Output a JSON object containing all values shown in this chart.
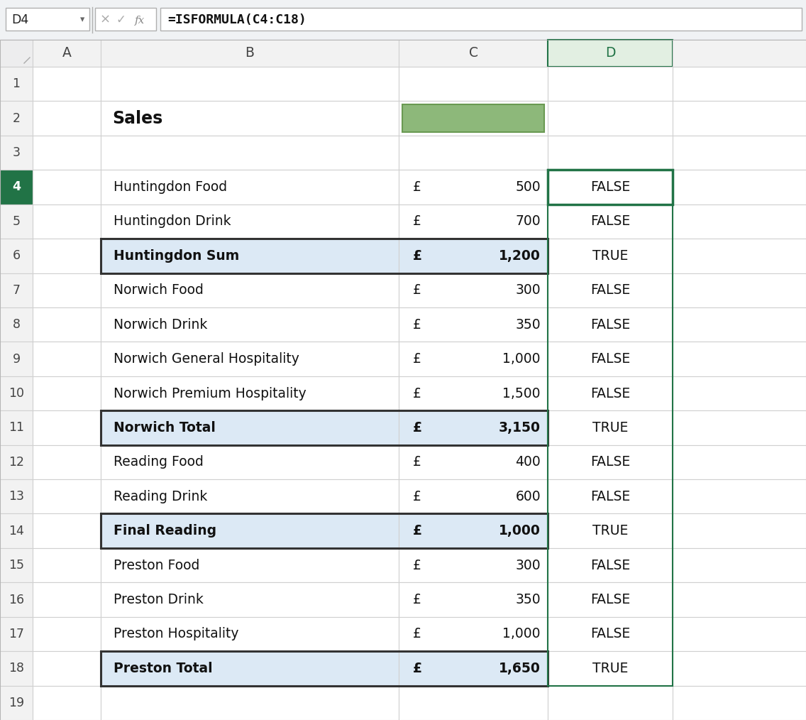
{
  "formula_bar_text": "=ISFORMULA(C4:C18)",
  "cell_ref": "D4",
  "rows": [
    {
      "row": 1,
      "b": "",
      "c_symbol": "",
      "c_val": "",
      "d": "",
      "bold": false,
      "sum_row": false
    },
    {
      "row": 2,
      "b": "Sales",
      "c_symbol": "",
      "c_val": "",
      "d": "",
      "bold": true,
      "sum_row": false,
      "green_cell": true
    },
    {
      "row": 3,
      "b": "",
      "c_symbol": "",
      "c_val": "",
      "d": "",
      "bold": false,
      "sum_row": false
    },
    {
      "row": 4,
      "b": "Huntingdon Food",
      "c_symbol": "£",
      "c_val": "500",
      "d": "FALSE",
      "bold": false,
      "sum_row": false
    },
    {
      "row": 5,
      "b": "Huntingdon Drink",
      "c_symbol": "£",
      "c_val": "700",
      "d": "FALSE",
      "bold": false,
      "sum_row": false
    },
    {
      "row": 6,
      "b": "Huntingdon Sum",
      "c_symbol": "£",
      "c_val": "1,200",
      "d": "TRUE",
      "bold": true,
      "sum_row": true
    },
    {
      "row": 7,
      "b": "Norwich Food",
      "c_symbol": "£",
      "c_val": "300",
      "d": "FALSE",
      "bold": false,
      "sum_row": false
    },
    {
      "row": 8,
      "b": "Norwich Drink",
      "c_symbol": "£",
      "c_val": "350",
      "d": "FALSE",
      "bold": false,
      "sum_row": false
    },
    {
      "row": 9,
      "b": "Norwich General Hospitality",
      "c_symbol": "£",
      "c_val": "1,000",
      "d": "FALSE",
      "bold": false,
      "sum_row": false
    },
    {
      "row": 10,
      "b": "Norwich Premium Hospitality",
      "c_symbol": "£",
      "c_val": "1,500",
      "d": "FALSE",
      "bold": false,
      "sum_row": false
    },
    {
      "row": 11,
      "b": "Norwich Total",
      "c_symbol": "£",
      "c_val": "3,150",
      "d": "TRUE",
      "bold": true,
      "sum_row": true
    },
    {
      "row": 12,
      "b": "Reading Food",
      "c_symbol": "£",
      "c_val": "400",
      "d": "FALSE",
      "bold": false,
      "sum_row": false
    },
    {
      "row": 13,
      "b": "Reading Drink",
      "c_symbol": "£",
      "c_val": "600",
      "d": "FALSE",
      "bold": false,
      "sum_row": false
    },
    {
      "row": 14,
      "b": "Final Reading",
      "c_symbol": "£",
      "c_val": "1,000",
      "d": "TRUE",
      "bold": true,
      "sum_row": true
    },
    {
      "row": 15,
      "b": "Preston Food",
      "c_symbol": "£",
      "c_val": "300",
      "d": "FALSE",
      "bold": false,
      "sum_row": false
    },
    {
      "row": 16,
      "b": "Preston Drink",
      "c_symbol": "£",
      "c_val": "350",
      "d": "FALSE",
      "bold": false,
      "sum_row": false
    },
    {
      "row": 17,
      "b": "Preston Hospitality",
      "c_symbol": "£",
      "c_val": "1,000",
      "d": "FALSE",
      "bold": false,
      "sum_row": false
    },
    {
      "row": 18,
      "b": "Preston Total",
      "c_symbol": "£",
      "c_val": "1,650",
      "d": "TRUE",
      "bold": true,
      "sum_row": true
    },
    {
      "row": 19,
      "b": "",
      "c_symbol": "",
      "c_val": "",
      "d": "",
      "bold": false,
      "sum_row": false
    }
  ],
  "colors": {
    "cell_bg": "#ffffff",
    "sum_row_bg": "#dce9f5",
    "grid_line": "#d0d0d0",
    "header_bg": "#f2f2f2",
    "header_fg": "#444444",
    "col_d_header_bg": "#e2efe2",
    "col_d_header_fg": "#217346",
    "row_num_selected_bg": "#217346",
    "row_num_selected_fg": "#ffffff",
    "selected_border": "#217346",
    "outer_bg": "#f5f6f7",
    "formula_bar_bg": "#ffffff",
    "top_strip_bg": "#f0f2f4",
    "green_fill": "#8db87a",
    "green_fill_border": "#6a9a52"
  },
  "figsize": [
    11.36,
    10.14
  ],
  "dpi": 100
}
